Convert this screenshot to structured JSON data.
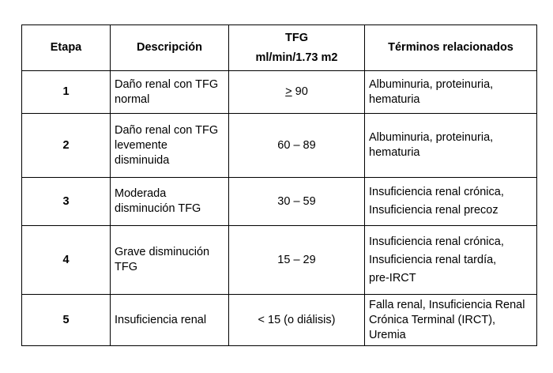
{
  "headers": {
    "etapa": "Etapa",
    "descripcion": "Descripción",
    "tfg_line1": "TFG",
    "tfg_line2": "ml/min/1.73 m2",
    "terminos": "Términos relacionados"
  },
  "rows": [
    {
      "etapa": "1",
      "descripcion": "Daño renal con TFG normal",
      "tfg_symbol": ">",
      "tfg_value": " 90",
      "terminos": [
        "Albuminuria, proteinuria, hematuria"
      ]
    },
    {
      "etapa": "2",
      "descripcion": "Daño renal con TFG levemente disminuida",
      "tfg": "60 – 89",
      "terminos": [
        "Albuminuria, proteinuria, hematuria"
      ]
    },
    {
      "etapa": "3",
      "descripcion": "Moderada disminución TFG",
      "tfg": "30 – 59",
      "terminos": [
        "Insuficiencia renal crónica,",
        "Insuficiencia renal precoz"
      ]
    },
    {
      "etapa": "4",
      "descripcion": "Grave disminución TFG",
      "tfg": "15 – 29",
      "terminos": [
        "Insuficiencia renal crónica,",
        "Insuficiencia renal tardía,",
        "pre-IRCT"
      ]
    },
    {
      "etapa": "5",
      "descripcion": "Insuficiencia renal",
      "tfg": "< 15 (o diálisis)",
      "terminos": [
        "Falla renal, Insuficiencia Renal Crónica Terminal (IRCT), Uremia"
      ]
    }
  ]
}
